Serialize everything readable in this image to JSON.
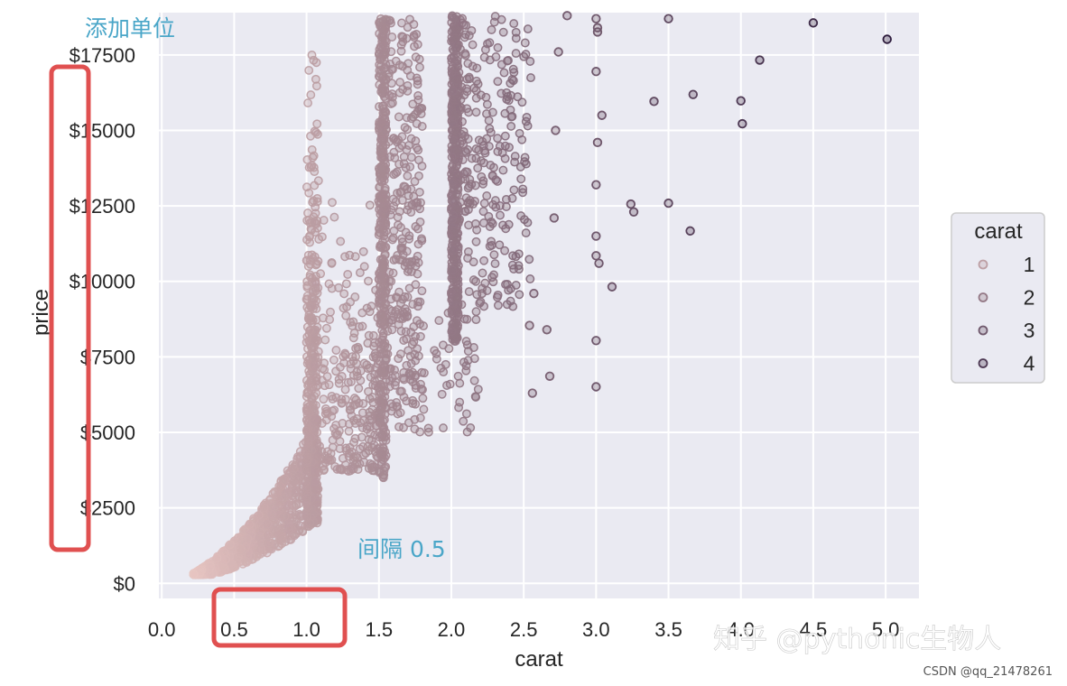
{
  "chart_data": {
    "type": "scatter",
    "xlabel": "carat",
    "ylabel": "price",
    "xlim": [
      -0.02,
      5.23
    ],
    "ylim": [
      -500,
      18900
    ],
    "xticks": [
      "0.0",
      "0.5",
      "1.0",
      "1.5",
      "2.0",
      "2.5",
      "3.0",
      "3.5",
      "4.0",
      "4.5",
      "5.0"
    ],
    "xtick_values": [
      0,
      0.5,
      1,
      1.5,
      2,
      2.5,
      3,
      3.5,
      4,
      4.5,
      5
    ],
    "yticks": [
      "$0",
      "$2500",
      "$5000",
      "$7500",
      "$10000",
      "$12500",
      "$15000",
      "$17500"
    ],
    "ytick_values": [
      0,
      2500,
      5000,
      7500,
      10000,
      12500,
      15000,
      17500
    ],
    "grid": true,
    "hue": "carat",
    "legend": {
      "title": "carat",
      "position": "right",
      "entries": [
        "1",
        "2",
        "3",
        "4"
      ]
    },
    "points": [
      {
        "x": 3.0,
        "y": 18700
      },
      {
        "x": 3.5,
        "y": 18700
      },
      {
        "x": 4.5,
        "y": 18560
      },
      {
        "x": 5.01,
        "y": 18018
      },
      {
        "x": 4.13,
        "y": 17330
      },
      {
        "x": 3.4,
        "y": 15960
      },
      {
        "x": 3.67,
        "y": 16190
      },
      {
        "x": 4.0,
        "y": 15980
      },
      {
        "x": 4.01,
        "y": 15220
      },
      {
        "x": 3.24,
        "y": 12560
      },
      {
        "x": 3.26,
        "y": 12300
      },
      {
        "x": 3.5,
        "y": 12590
      },
      {
        "x": 3.65,
        "y": 11670
      },
      {
        "x": 3.11,
        "y": 9820
      },
      {
        "x": 3.0,
        "y": 8040
      },
      {
        "x": 3.0,
        "y": 6510
      },
      {
        "x": 3.04,
        "y": 15500
      },
      {
        "x": 3.0,
        "y": 16950
      },
      {
        "x": 3.01,
        "y": 18400
      },
      {
        "x": 3.01,
        "y": 18260
      },
      {
        "x": 3.01,
        "y": 14600
      },
      {
        "x": 3.0,
        "y": 13200
      },
      {
        "x": 3.0,
        "y": 11500
      },
      {
        "x": 3.0,
        "y": 10850
      },
      {
        "x": 3.02,
        "y": 10600
      },
      {
        "x": 2.8,
        "y": 18800
      },
      {
        "x": 2.74,
        "y": 17600
      },
      {
        "x": 2.72,
        "y": 15000
      },
      {
        "x": 2.71,
        "y": 12100
      },
      {
        "x": 2.66,
        "y": 8400
      },
      {
        "x": 2.68,
        "y": 6860
      },
      {
        "x": 2.56,
        "y": 6300
      },
      {
        "x": 2.54,
        "y": 8540
      },
      {
        "x": 2.57,
        "y": 9600
      }
    ],
    "annotations": [
      "添加单位",
      "间隔 0.5"
    ]
  },
  "watermark": "知乎 @pythonic生物人",
  "credit": "CSDN @qq_21478261"
}
